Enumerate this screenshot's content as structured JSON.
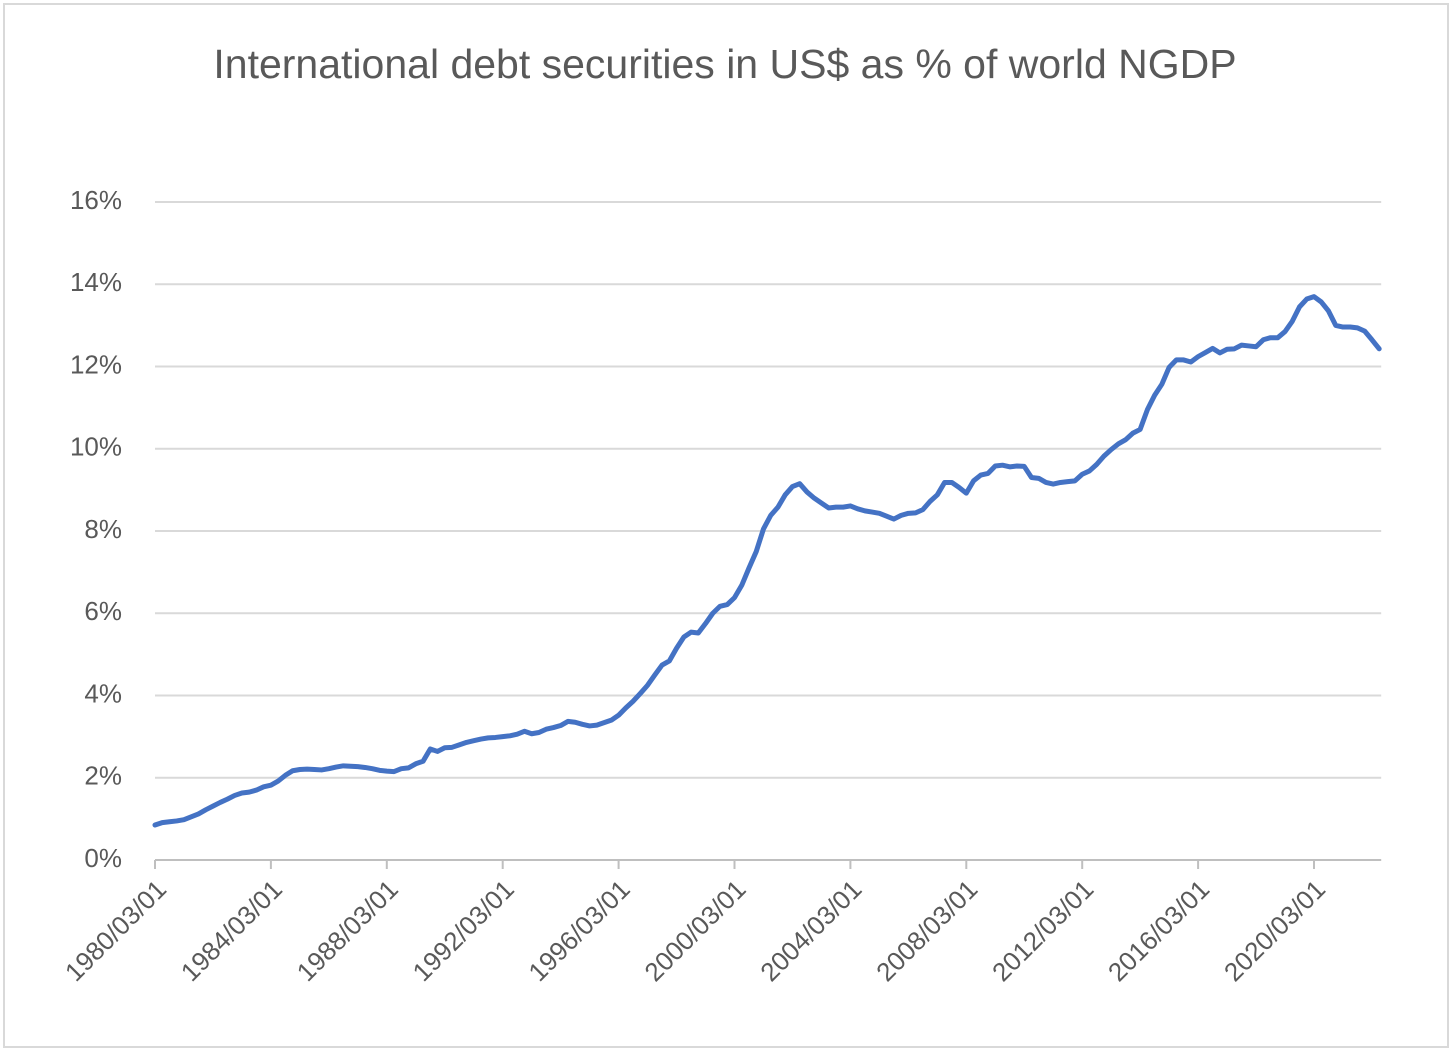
{
  "chart_data": {
    "type": "line",
    "title": "International debt securities in US$ as % of world NGDP",
    "categories": [
      "1980/03/01",
      null,
      null,
      null,
      null,
      null,
      null,
      null,
      null,
      null,
      null,
      null,
      null,
      null,
      null,
      null,
      "1984/03/01",
      null,
      null,
      null,
      null,
      null,
      null,
      null,
      null,
      null,
      null,
      null,
      null,
      null,
      null,
      null,
      "1988/03/01",
      null,
      null,
      null,
      null,
      null,
      null,
      null,
      null,
      null,
      null,
      null,
      null,
      null,
      null,
      null,
      "1992/03/01",
      null,
      null,
      null,
      null,
      null,
      null,
      null,
      null,
      null,
      null,
      null,
      null,
      null,
      null,
      null,
      "1996/03/01",
      null,
      null,
      null,
      null,
      null,
      null,
      null,
      null,
      null,
      null,
      null,
      null,
      null,
      null,
      null,
      "2000/03/01",
      null,
      null,
      null,
      null,
      null,
      null,
      null,
      null,
      null,
      null,
      null,
      null,
      null,
      null,
      null,
      "2004/03/01",
      null,
      null,
      null,
      null,
      null,
      null,
      null,
      null,
      null,
      null,
      null,
      null,
      null,
      null,
      null,
      "2008/03/01",
      null,
      null,
      null,
      null,
      null,
      null,
      null,
      null,
      null,
      null,
      null,
      null,
      null,
      null,
      null,
      "2012/03/01",
      null,
      null,
      null,
      null,
      null,
      null,
      null,
      null,
      null,
      null,
      null,
      null,
      null,
      null,
      null,
      "2016/03/01",
      null,
      null,
      null,
      null,
      null,
      null,
      null,
      null,
      null,
      null,
      null,
      null,
      null,
      null,
      null,
      "2020/03/01",
      null,
      null,
      null,
      null,
      null,
      null,
      null,
      null,
      null
    ],
    "values": [
      0.85,
      0.91,
      0.93,
      0.95,
      0.98,
      1.05,
      1.12,
      1.22,
      1.31,
      1.4,
      1.48,
      1.57,
      1.63,
      1.65,
      1.7,
      1.78,
      1.82,
      1.92,
      2.06,
      2.17,
      2.2,
      2.21,
      2.2,
      2.19,
      2.22,
      2.26,
      2.29,
      2.28,
      2.27,
      2.25,
      2.22,
      2.18,
      2.16,
      2.15,
      2.22,
      2.24,
      2.34,
      2.4,
      2.7,
      2.64,
      2.73,
      2.74,
      2.8,
      2.86,
      2.9,
      2.94,
      2.97,
      2.98,
      3.0,
      3.02,
      3.06,
      3.13,
      3.07,
      3.1,
      3.18,
      3.22,
      3.27,
      3.37,
      3.35,
      3.3,
      3.26,
      3.28,
      3.34,
      3.4,
      3.52,
      3.7,
      3.86,
      4.05,
      4.25,
      4.5,
      4.74,
      4.84,
      5.15,
      5.42,
      5.54,
      5.52,
      5.75,
      6.0,
      6.17,
      6.21,
      6.38,
      6.68,
      7.1,
      7.5,
      8.05,
      8.38,
      8.58,
      8.88,
      9.08,
      9.15,
      8.95,
      8.8,
      8.68,
      8.56,
      8.58,
      8.58,
      8.61,
      8.54,
      8.49,
      8.46,
      8.43,
      8.36,
      8.29,
      8.38,
      8.43,
      8.44,
      8.52,
      8.72,
      8.88,
      9.18,
      9.18,
      9.06,
      8.92,
      9.22,
      9.36,
      9.4,
      9.58,
      9.6,
      9.56,
      9.58,
      9.57,
      9.3,
      9.28,
      9.18,
      9.14,
      9.18,
      9.2,
      9.22,
      9.38,
      9.46,
      9.62,
      9.82,
      9.98,
      10.12,
      10.22,
      10.38,
      10.47,
      10.95,
      11.3,
      11.57,
      11.98,
      12.16,
      12.16,
      12.11,
      12.24,
      12.34,
      12.44,
      12.33,
      12.42,
      12.43,
      12.52,
      12.5,
      12.48,
      12.65,
      12.7,
      12.7,
      12.85,
      13.1,
      13.45,
      13.64,
      13.7,
      13.57,
      13.35,
      13.0,
      12.96,
      12.96,
      12.94,
      12.86,
      12.65,
      12.43
    ],
    "color": "#4472c4",
    "ylim": [
      0,
      16
    ],
    "yticks": [
      {
        "value": 0,
        "label": "0%"
      },
      {
        "value": 2,
        "label": "2%"
      },
      {
        "value": 4,
        "label": "4%"
      },
      {
        "value": 6,
        "label": "6%"
      },
      {
        "value": 8,
        "label": "8%"
      },
      {
        "value": 10,
        "label": "10%"
      },
      {
        "value": 12,
        "label": "12%"
      },
      {
        "value": 14,
        "label": "14%"
      },
      {
        "value": 16,
        "label": "16%"
      }
    ],
    "grid": true
  }
}
